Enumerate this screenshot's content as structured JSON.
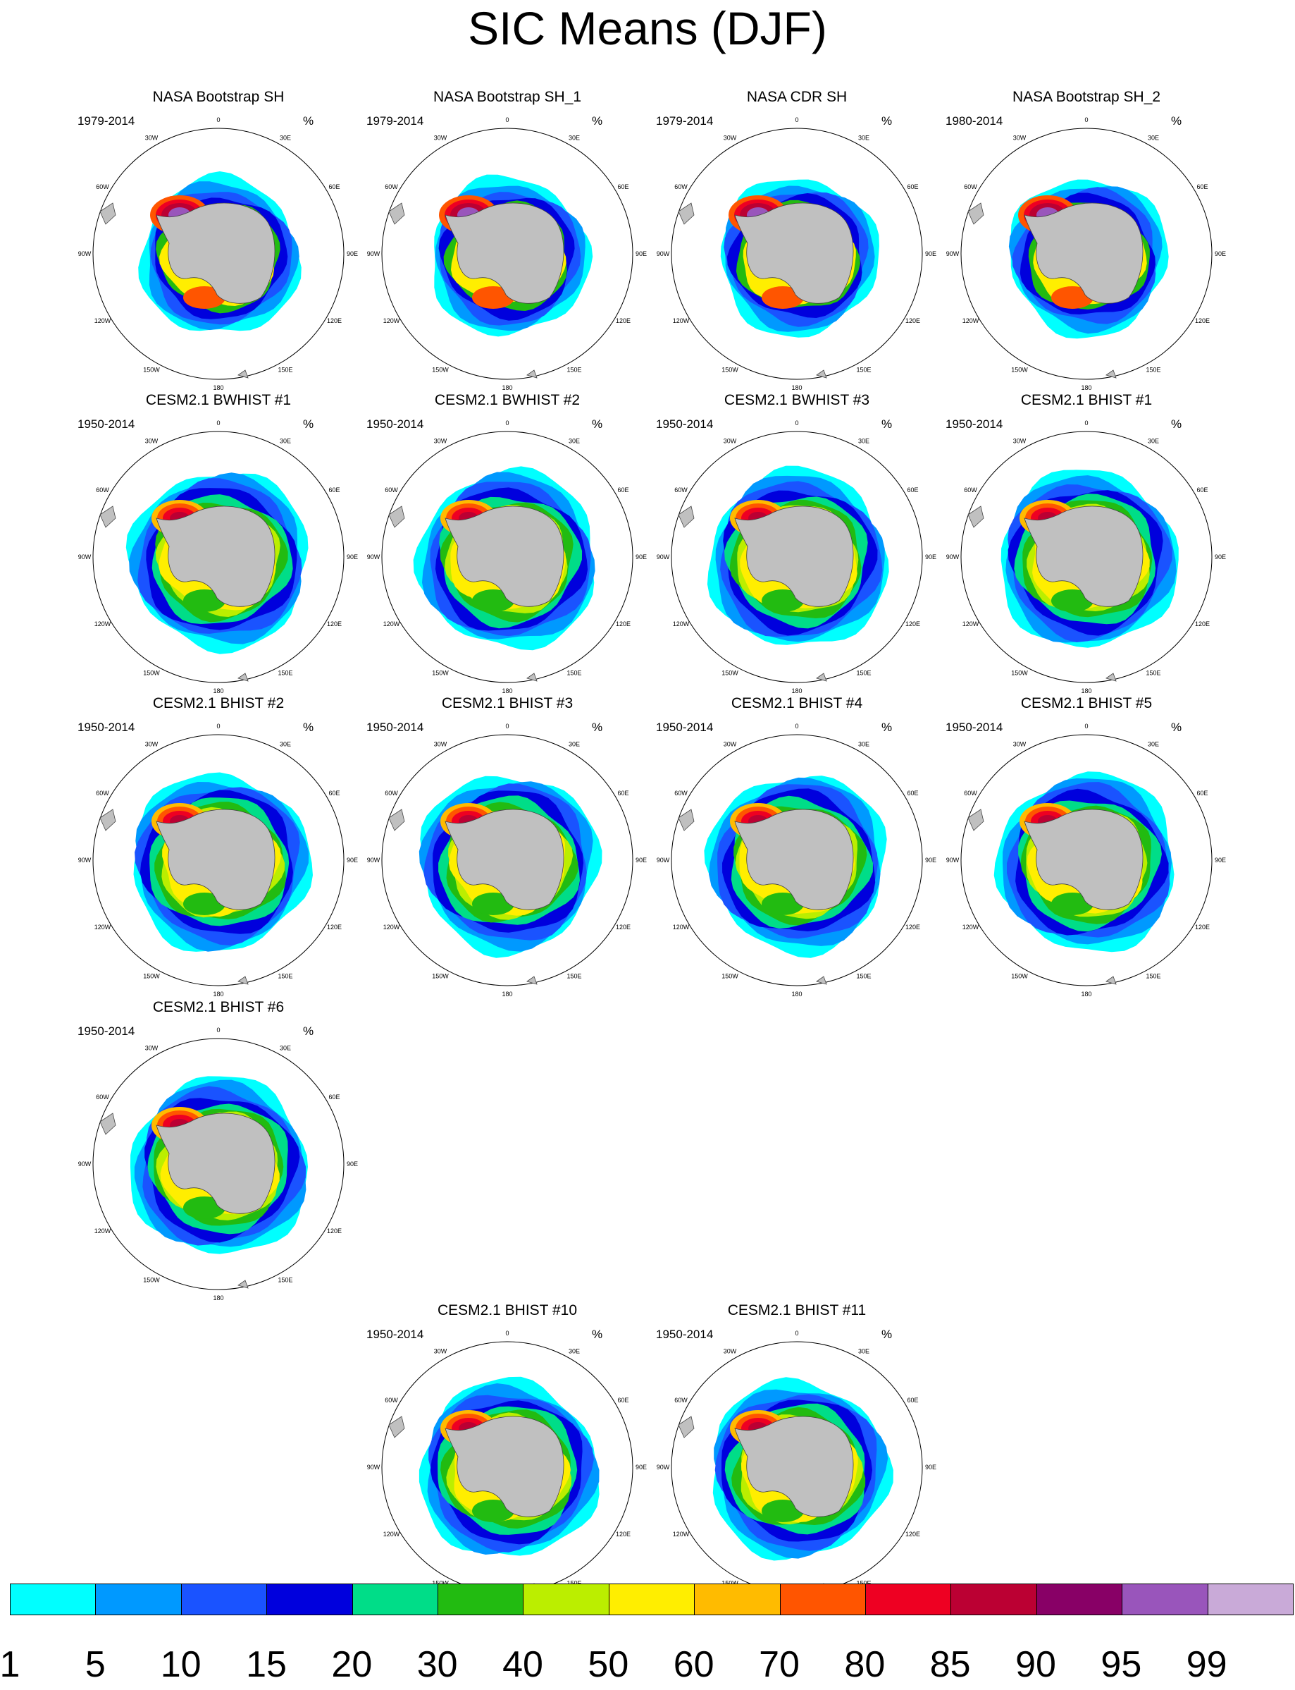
{
  "title": "SIC Means (DJF)",
  "unit_label": "%",
  "map_labels": {
    "lon_0": "0",
    "lon_30E": "30E",
    "lon_60E": "60E",
    "lon_90E": "90E",
    "lon_120E": "120E",
    "lon_150E": "150E",
    "lon_180": "180",
    "lon_150W": "150W",
    "lon_120W": "120W",
    "lon_90W": "90W",
    "lon_60W": "60W",
    "lon_30W": "30W"
  },
  "panels": [
    {
      "title": "NASA Bootstrap SH",
      "period": "1979-2014",
      "kind": "obs"
    },
    {
      "title": "NASA Bootstrap SH_1",
      "period": "1979-2014",
      "kind": "obs"
    },
    {
      "title": "NASA CDR SH",
      "period": "1979-2014",
      "kind": "obs"
    },
    {
      "title": "NASA Bootstrap SH_2",
      "period": "1980-2014",
      "kind": "obs"
    },
    {
      "title": "CESM2.1 BWHIST #1",
      "period": "1950-2014",
      "kind": "model"
    },
    {
      "title": "CESM2.1 BWHIST #2",
      "period": "1950-2014",
      "kind": "model"
    },
    {
      "title": "CESM2.1 BWHIST #3",
      "period": "1950-2014",
      "kind": "model"
    },
    {
      "title": "CESM2.1 BHIST #1",
      "period": "1950-2014",
      "kind": "model"
    },
    {
      "title": "CESM2.1 BHIST #2",
      "period": "1950-2014",
      "kind": "model"
    },
    {
      "title": "CESM2.1 BHIST #3",
      "period": "1950-2014",
      "kind": "model"
    },
    {
      "title": "CESM2.1 BHIST #4",
      "period": "1950-2014",
      "kind": "model"
    },
    {
      "title": "CESM2.1 BHIST #5",
      "period": "1950-2014",
      "kind": "model"
    },
    {
      "title": "CESM2.1 BHIST #6",
      "period": "1950-2014",
      "kind": "model"
    },
    {
      "title": "CESM2.1 BHIST #10",
      "period": "1950-2014",
      "kind": "model"
    },
    {
      "title": "CESM2.1 BHIST #11",
      "period": "1950-2014",
      "kind": "model"
    }
  ],
  "colorbar": {
    "colors": [
      "#00ffff",
      "#0099ff",
      "#1a53ff",
      "#0000dd",
      "#00dd88",
      "#22bb11",
      "#bbee00",
      "#ffee00",
      "#ffbb00",
      "#ff5500",
      "#ee0022",
      "#bb0033",
      "#880066",
      "#9955bb",
      "#c9aad8"
    ],
    "labels": [
      "1",
      "5",
      "10",
      "15",
      "20",
      "30",
      "40",
      "50",
      "60",
      "70",
      "80",
      "85",
      "90",
      "95",
      "99"
    ]
  },
  "land_color": "#c0c0c0"
}
